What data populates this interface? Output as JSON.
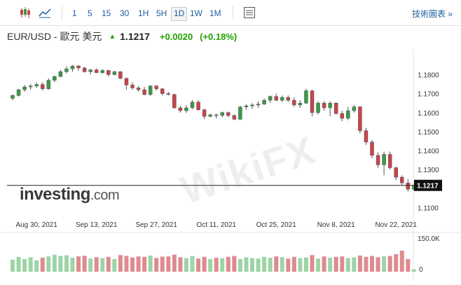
{
  "toolbar": {
    "chart_type_icon": "candlestick-icon",
    "area_icon": "area-chart-icon",
    "settings_icon": "settings-icon",
    "periods": [
      "1",
      "5",
      "15",
      "30",
      "1H",
      "5H",
      "1D",
      "1W",
      "1M"
    ],
    "active_period": "1D",
    "advanced_label": "技術圖表 »"
  },
  "header": {
    "symbol": "EUR/USD - 歐元 美元",
    "arrow": "▲",
    "price": "1.1217",
    "change": "+0.0020",
    "change_pct": "(+0.18%)"
  },
  "logo": {
    "word": "investing",
    "suffix": ".com"
  },
  "watermark": "WikiFX",
  "chart_data": {
    "type": "candlestick",
    "y_ticks": [
      "1.1800",
      "1.1700",
      "1.1600",
      "1.1500",
      "1.1400",
      "1.1300",
      "1.1100"
    ],
    "y_tick_values": [
      1.18,
      1.17,
      1.16,
      1.15,
      1.14,
      1.13,
      1.11
    ],
    "ylim": [
      1.1065,
      1.1905
    ],
    "x_labels": [
      "Aug 30, 2021",
      "Sep 13, 2021",
      "Sep 27, 2021",
      "Oct 11, 2021",
      "Oct 25, 2021",
      "Nov 8, 2021",
      "Nov 22, 2021"
    ],
    "x_label_bars": [
      4,
      14,
      24,
      34,
      44,
      54,
      64
    ],
    "last_price_label": "1.1217",
    "last_price": 1.1217,
    "volume_label": "150.0K",
    "volume_zero_label": "0",
    "volume_max": 150,
    "up_color": "#3a9a48",
    "down_color": "#c9434a",
    "volume_up_color": "#9dd4a6",
    "volume_down_color": "#dd8b8f",
    "candles": [
      [
        1.1675,
        1.1695,
        1.1665,
        1.169
      ],
      [
        1.169,
        1.1725,
        1.1685,
        1.172
      ],
      [
        1.172,
        1.1745,
        1.171,
        1.1735
      ],
      [
        1.1735,
        1.175,
        1.172,
        1.174
      ],
      [
        1.174,
        1.1758,
        1.1728,
        1.1748
      ],
      [
        1.1748,
        1.176,
        1.1715,
        1.1725
      ],
      [
        1.1725,
        1.178,
        1.172,
        1.177
      ],
      [
        1.177,
        1.1795,
        1.176,
        1.179
      ],
      [
        1.179,
        1.1825,
        1.1785,
        1.1815
      ],
      [
        1.1815,
        1.1842,
        1.1805,
        1.183
      ],
      [
        1.183,
        1.185,
        1.1815,
        1.1845
      ],
      [
        1.1845,
        1.185,
        1.182,
        1.1835
      ],
      [
        1.1835,
        1.184,
        1.181,
        1.1815
      ],
      [
        1.1815,
        1.183,
        1.18,
        1.1825
      ],
      [
        1.1825,
        1.1832,
        1.1808,
        1.181
      ],
      [
        1.181,
        1.1828,
        1.1805,
        1.1822
      ],
      [
        1.1822,
        1.1825,
        1.179,
        1.18
      ],
      [
        1.18,
        1.182,
        1.1795,
        1.1815
      ],
      [
        1.1815,
        1.1818,
        1.1775,
        1.178
      ],
      [
        1.178,
        1.1785,
        1.172,
        1.1745
      ],
      [
        1.1745,
        1.176,
        1.172,
        1.173
      ],
      [
        1.173,
        1.174,
        1.171,
        1.172
      ],
      [
        1.172,
        1.1735,
        1.169,
        1.1695
      ],
      [
        1.1695,
        1.1745,
        1.1688,
        1.174
      ],
      [
        1.174,
        1.1745,
        1.1715,
        1.1725
      ],
      [
        1.1725,
        1.173,
        1.169,
        1.17
      ],
      [
        1.17,
        1.171,
        1.169,
        1.1695
      ],
      [
        1.1695,
        1.17,
        1.162,
        1.1625
      ],
      [
        1.1625,
        1.1635,
        1.16,
        1.161
      ],
      [
        1.161,
        1.164,
        1.1598,
        1.1625
      ],
      [
        1.1625,
        1.1665,
        1.1618,
        1.1655
      ],
      [
        1.1655,
        1.1665,
        1.161,
        1.1615
      ],
      [
        1.1615,
        1.162,
        1.1565,
        1.158
      ],
      [
        1.158,
        1.1595,
        1.1575,
        1.1588
      ],
      [
        1.1588,
        1.1595,
        1.157,
        1.1585
      ],
      [
        1.1585,
        1.1605,
        1.1575,
        1.16
      ],
      [
        1.16,
        1.1605,
        1.1575,
        1.1585
      ],
      [
        1.1585,
        1.159,
        1.156,
        1.1565
      ],
      [
        1.1565,
        1.1635,
        1.156,
        1.163
      ],
      [
        1.163,
        1.1645,
        1.1615,
        1.1635
      ],
      [
        1.1635,
        1.165,
        1.162,
        1.164
      ],
      [
        1.164,
        1.166,
        1.1625,
        1.1645
      ],
      [
        1.1645,
        1.1675,
        1.164,
        1.1665
      ],
      [
        1.1665,
        1.169,
        1.165,
        1.1685
      ],
      [
        1.1685,
        1.17,
        1.166,
        1.1665
      ],
      [
        1.1665,
        1.169,
        1.1655,
        1.168
      ],
      [
        1.168,
        1.169,
        1.1655,
        1.1665
      ],
      [
        1.1665,
        1.168,
        1.163,
        1.164
      ],
      [
        1.164,
        1.1665,
        1.1625,
        1.165
      ],
      [
        1.165,
        1.1725,
        1.1645,
        1.1715
      ],
      [
        1.1715,
        1.172,
        1.158,
        1.16
      ],
      [
        1.16,
        1.166,
        1.159,
        1.165
      ],
      [
        1.165,
        1.166,
        1.161,
        1.1625
      ],
      [
        1.1625,
        1.166,
        1.158,
        1.165
      ],
      [
        1.165,
        1.1655,
        1.159,
        1.1595
      ],
      [
        1.1595,
        1.161,
        1.1555,
        1.157
      ],
      [
        1.157,
        1.163,
        1.156,
        1.161
      ],
      [
        1.161,
        1.164,
        1.16,
        1.163
      ],
      [
        1.163,
        1.1635,
        1.149,
        1.1505
      ],
      [
        1.1505,
        1.152,
        1.143,
        1.1445
      ],
      [
        1.1445,
        1.1455,
        1.136,
        1.1375
      ],
      [
        1.1375,
        1.139,
        1.131,
        1.1325
      ],
      [
        1.1325,
        1.1395,
        1.127,
        1.138
      ],
      [
        1.138,
        1.1395,
        1.13,
        1.131
      ],
      [
        1.131,
        1.1315,
        1.1245,
        1.126
      ],
      [
        1.126,
        1.127,
        1.1215,
        1.123
      ],
      [
        1.123,
        1.125,
        1.1185,
        1.1197
      ],
      [
        1.1197,
        1.1225,
        1.119,
        1.1217
      ]
    ],
    "volumes": [
      55,
      68,
      58,
      66,
      52,
      64,
      70,
      78,
      72,
      75,
      64,
      70,
      73,
      60,
      66,
      62,
      68,
      58,
      76,
      72,
      65,
      70,
      68,
      74,
      63,
      69,
      70,
      78,
      66,
      62,
      72,
      60,
      68,
      58,
      64,
      62,
      68,
      72,
      58,
      66,
      62,
      60,
      68,
      64,
      70,
      66,
      60,
      68,
      62,
      65,
      76,
      60,
      70,
      64,
      68,
      70,
      62,
      66,
      74,
      68,
      72,
      66,
      70,
      72,
      80,
      96,
      58,
      10
    ]
  }
}
